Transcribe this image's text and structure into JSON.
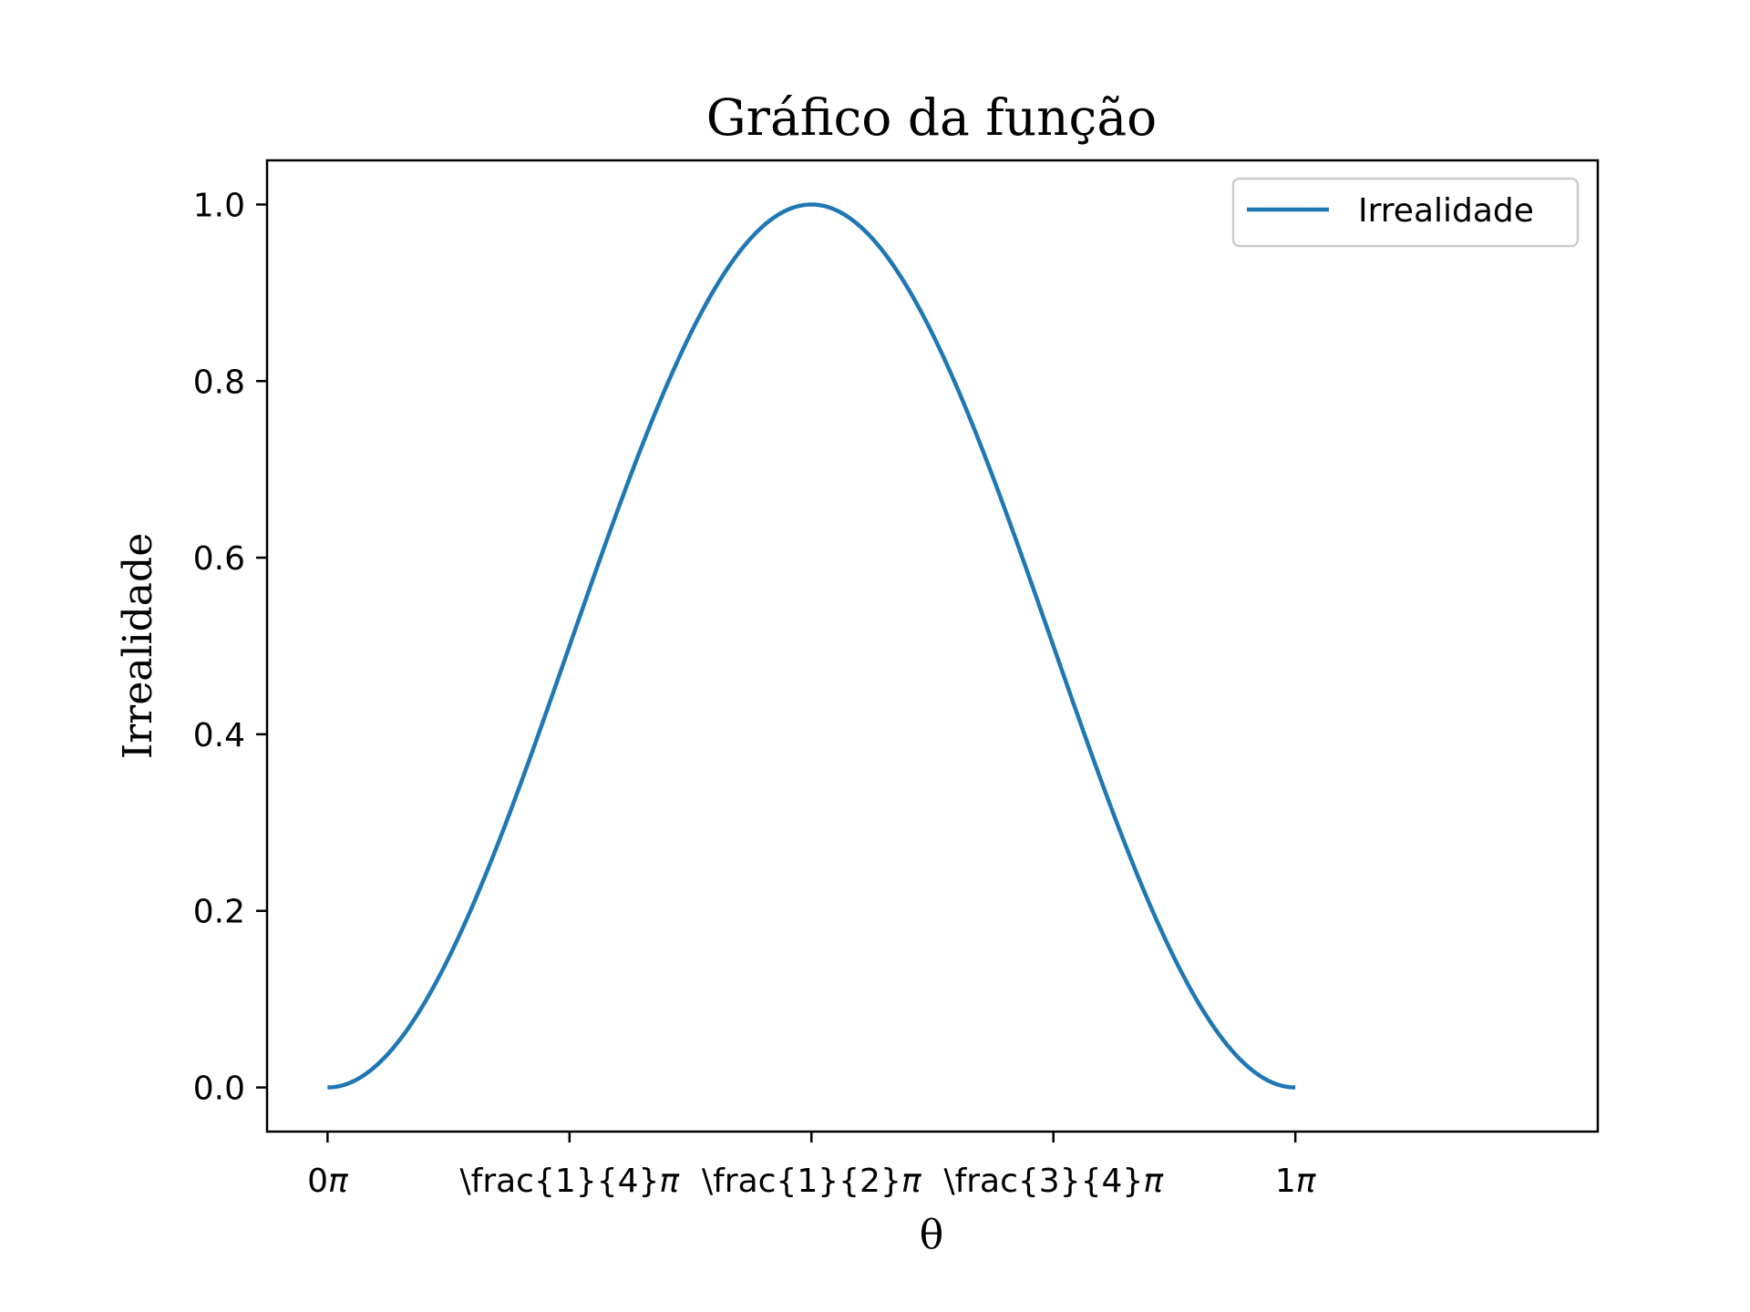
{
  "chart_data": {
    "type": "line",
    "title": "Gráfico da função",
    "xlabel": "θ",
    "ylabel": "Irrealidade",
    "xlim": [
      -0.0625,
      1.3125
    ],
    "ylim": [
      -0.05,
      1.05
    ],
    "x_ticks": [
      {
        "value": 0,
        "label_main": "0",
        "label_pi": "π"
      },
      {
        "value": 0.25,
        "label_main": "\\frac{1}{4}",
        "label_pi": "π"
      },
      {
        "value": 0.5,
        "label_main": "\\frac{1}{2}",
        "label_pi": "π"
      },
      {
        "value": 0.75,
        "label_main": "\\frac{3}{4}",
        "label_pi": "π"
      },
      {
        "value": 1.0,
        "label_main": "1",
        "label_pi": "π"
      }
    ],
    "x_ticks_unit": "π",
    "y_ticks": [
      {
        "value": 0.0,
        "label": "0.0"
      },
      {
        "value": 0.2,
        "label": "0.2"
      },
      {
        "value": 0.4,
        "label": "0.4"
      },
      {
        "value": 0.6,
        "label": "0.6"
      },
      {
        "value": 0.8,
        "label": "0.8"
      },
      {
        "value": 1.0,
        "label": "1.0"
      }
    ],
    "grid": false,
    "legend": {
      "position": "top-right"
    },
    "series": [
      {
        "name": "Irrealidade",
        "color": "#1f77b4",
        "x": [
          0,
          0.0625,
          0.125,
          0.1875,
          0.25,
          0.3125,
          0.375,
          0.4375,
          0.5,
          0.5625,
          0.625,
          0.6875,
          0.75,
          0.8125,
          0.875,
          0.9375,
          1.0
        ],
        "y": [
          0.0,
          0.038,
          0.146,
          0.309,
          0.5,
          0.691,
          0.854,
          0.962,
          1.0,
          0.962,
          0.854,
          0.691,
          0.5,
          0.309,
          0.146,
          0.038,
          0.0
        ]
      }
    ]
  }
}
